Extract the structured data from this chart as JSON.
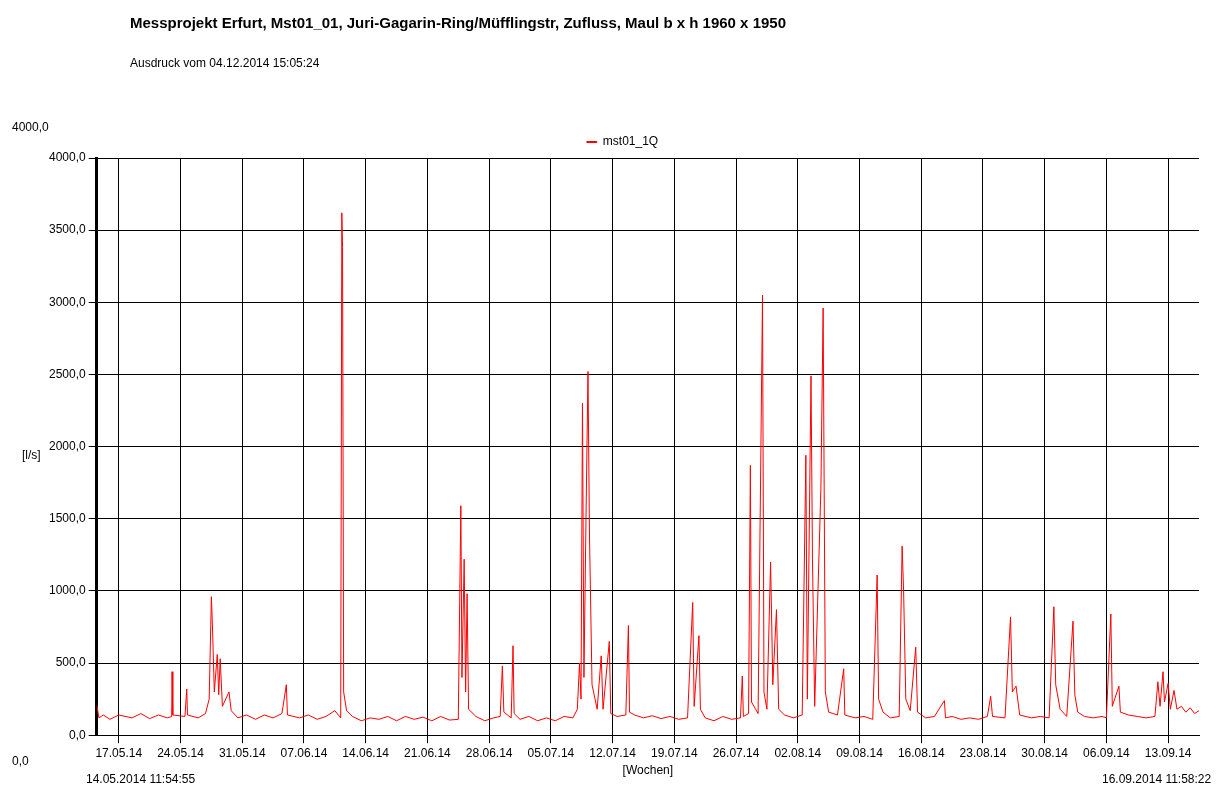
{
  "chart_data": {
    "type": "line",
    "title": "Messprojekt Erfurt, Mst01_01, Juri-Gagarin-Ring/Müfflingstr, Zufluss, Maul b x h 1960 x 1950",
    "subtitle": "Ausdruck vom 04.12.2014 15:05:24",
    "xlabel": "[Wochen]",
    "ylabel": "[l/s]",
    "annotations": [
      "4000,0",
      "0,0",
      "14.05.2014 11:54:55",
      "16.09.2014 11:58:22"
    ],
    "legend": "top",
    "grid": true,
    "marker": "none",
    "line_style": "solid",
    "xlim": [
      "2014-05-14T11:54",
      "2014-09-16T11:58"
    ],
    "xticks": [
      {
        "value": "2014-05-17",
        "label": "17.05.14"
      },
      {
        "value": "2014-05-24",
        "label": "24.05.14"
      },
      {
        "value": "2014-05-31",
        "label": "31.05.14"
      },
      {
        "value": "2014-06-07",
        "label": "07.06.14"
      },
      {
        "value": "2014-06-14",
        "label": "14.06.14"
      },
      {
        "value": "2014-06-21",
        "label": "21.06.14"
      },
      {
        "value": "2014-06-28",
        "label": "28.06.14"
      },
      {
        "value": "2014-07-05",
        "label": "05.07.14"
      },
      {
        "value": "2014-07-12",
        "label": "12.07.14"
      },
      {
        "value": "2014-07-19",
        "label": "19.07.14"
      },
      {
        "value": "2014-07-26",
        "label": "26.07.14"
      },
      {
        "value": "2014-08-02",
        "label": "02.08.14"
      },
      {
        "value": "2014-08-09",
        "label": "09.08.14"
      },
      {
        "value": "2014-08-16",
        "label": "16.08.14"
      },
      {
        "value": "2014-08-23",
        "label": "23.08.14"
      },
      {
        "value": "2014-08-30",
        "label": "30.08.14"
      },
      {
        "value": "2014-09-06",
        "label": "06.09.14"
      },
      {
        "value": "2014-09-13",
        "label": "13.09.14"
      }
    ],
    "ylim": [
      0,
      4000
    ],
    "yticks": [
      {
        "value": 0,
        "label": "0,0"
      },
      {
        "value": 500,
        "label": "500,0"
      },
      {
        "value": 1000,
        "label": "1000,0"
      },
      {
        "value": 1500,
        "label": "1500,0"
      },
      {
        "value": 2000,
        "label": "2000,0"
      },
      {
        "value": 2500,
        "label": "2500,0"
      },
      {
        "value": 3000,
        "label": "3000,0"
      },
      {
        "value": 3500,
        "label": "3500,0"
      },
      {
        "value": 4000,
        "label": "4000,0"
      }
    ],
    "series": [
      {
        "name": "mst01_1Q",
        "color": "#ff0000",
        "x": [
          "2014-05-14T12:00",
          "2014-05-14T18:00",
          "2014-05-15T06:00",
          "2014-05-16T00:00",
          "2014-05-17T00:00",
          "2014-05-18T12:00",
          "2014-05-19T12:00",
          "2014-05-20T12:00",
          "2014-05-21T12:00",
          "2014-05-22T12:00",
          "2014-05-23T00:00",
          "2014-05-23T01:00",
          "2014-05-23T03:00",
          "2014-05-24T12:00",
          "2014-05-24T17:00",
          "2014-05-24T19:00",
          "2014-05-26T00:00",
          "2014-05-26T20:00",
          "2014-05-27T06:00",
          "2014-05-27T12:00",
          "2014-05-27T15:00",
          "2014-05-27T20:00",
          "2014-05-28T04:00",
          "2014-05-28T08:00",
          "2014-05-28T12:00",
          "2014-05-28T18:00",
          "2014-05-29T12:00",
          "2014-05-29T18:00",
          "2014-05-30T12:00",
          "2014-05-31T12:00",
          "2014-06-01T12:00",
          "2014-06-02T12:00",
          "2014-06-03T12:00",
          "2014-06-04T12:00",
          "2014-06-05T00:00",
          "2014-06-05T03:00",
          "2014-06-06T12:00",
          "2014-06-07T12:00",
          "2014-06-08T12:00",
          "2014-06-09T12:00",
          "2014-06-10T12:00",
          "2014-06-11T04:00",
          "2014-06-11T07:00",
          "2014-06-11T09:00",
          "2014-06-11T12:00",
          "2014-06-11T20:00",
          "2014-06-12T12:00",
          "2014-06-13T12:00",
          "2014-06-14T12:00",
          "2014-06-15T12:00",
          "2014-06-16T12:00",
          "2014-06-17T12:00",
          "2014-06-18T12:00",
          "2014-06-19T12:00",
          "2014-06-20T12:00",
          "2014-06-21T12:00",
          "2014-06-22T12:00",
          "2014-06-23T12:00",
          "2014-06-24T12:00",
          "2014-06-24T19:00",
          "2014-06-24T22:00",
          "2014-06-25T04:00",
          "2014-06-25T08:00",
          "2014-06-25T12:00",
          "2014-06-25T16:00",
          "2014-06-26T12:00",
          "2014-06-27T12:00",
          "2014-06-28T12:00",
          "2014-06-29T06:00",
          "2014-06-29T12:00",
          "2014-06-29T16:00",
          "2014-06-30T12:00",
          "2014-06-30T17:00",
          "2014-06-30T20:00",
          "2014-07-01T12:00",
          "2014-07-02T12:00",
          "2014-07-03T12:00",
          "2014-07-04T12:00",
          "2014-07-05T12:00",
          "2014-07-06T12:00",
          "2014-07-07T12:00",
          "2014-07-08T00:00",
          "2014-07-08T06:00",
          "2014-07-08T10:00",
          "2014-07-08T14:00",
          "2014-07-08T18:00",
          "2014-07-09T00:00",
          "2014-07-09T05:00",
          "2014-07-09T09:00",
          "2014-07-09T16:00",
          "2014-07-10T06:00",
          "2014-07-10T17:00",
          "2014-07-10T22:00",
          "2014-07-11T15:00",
          "2014-07-11T19:00",
          "2014-07-12T12:00",
          "2014-07-13T12:00",
          "2014-07-13T19:00",
          "2014-07-13T22:00",
          "2014-07-14T12:00",
          "2014-07-15T12:00",
          "2014-07-16T12:00",
          "2014-07-17T12:00",
          "2014-07-18T12:00",
          "2014-07-19T12:00",
          "2014-07-20T12:00",
          "2014-07-21T02:00",
          "2014-07-21T06:00",
          "2014-07-21T19:00",
          "2014-07-21T23:00",
          "2014-07-22T12:00",
          "2014-07-23T12:00",
          "2014-07-24T12:00",
          "2014-07-25T12:00",
          "2014-07-26T12:00",
          "2014-07-26T17:00",
          "2014-07-26T20:00",
          "2014-07-27T10:00",
          "2014-07-27T15:00",
          "2014-07-27T18:00",
          "2014-07-28T12:00",
          "2014-07-29T00:00",
          "2014-07-29T04:00",
          "2014-07-29T12:00",
          "2014-07-29T22:00",
          "2014-07-30T04:00",
          "2014-07-30T14:00",
          "2014-07-30T20:00",
          "2014-07-31T12:00",
          "2014-08-01T12:00",
          "2014-08-02T12:00",
          "2014-08-02T22:00",
          "2014-08-03T02:00",
          "2014-08-03T12:00",
          "2014-08-03T16:00",
          "2014-08-03T22:00",
          "2014-08-04T15:00",
          "2014-08-04T21:00",
          "2014-08-05T03:00",
          "2014-08-05T12:00",
          "2014-08-06T12:00",
          "2014-08-07T05:00",
          "2014-08-07T08:00",
          "2014-08-08T12:00",
          "2014-08-09T12:00",
          "2014-08-10T12:00",
          "2014-08-11T00:00",
          "2014-08-11T04:00",
          "2014-08-11T16:00",
          "2014-08-12T12:00",
          "2014-08-13T12:00",
          "2014-08-13T20:00",
          "2014-08-14T00:00",
          "2014-08-14T06:00",
          "2014-08-14T18:00",
          "2014-08-15T09:00",
          "2014-08-15T14:00",
          "2014-08-16T12:00",
          "2014-08-17T12:00",
          "2014-08-18T15:00",
          "2014-08-18T18:00",
          "2014-08-19T12:00",
          "2014-08-20T12:00",
          "2014-08-21T12:00",
          "2014-08-22T12:00",
          "2014-08-23T12:00",
          "2014-08-23T21:00",
          "2014-08-24T02:00",
          "2014-08-25T12:00",
          "2014-08-26T03:00",
          "2014-08-26T08:00",
          "2014-08-26T18:00",
          "2014-08-27T04:00",
          "2014-08-28T12:00",
          "2014-08-29T12:00",
          "2014-08-30T12:00",
          "2014-08-31T01:00",
          "2014-08-31T06:00",
          "2014-08-31T18:00",
          "2014-09-01T12:00",
          "2014-09-02T05:00",
          "2014-09-02T10:00",
          "2014-09-02T18:00",
          "2014-09-03T12:00",
          "2014-09-04T12:00",
          "2014-09-05T12:00",
          "2014-09-06T00:00",
          "2014-09-06T12:00",
          "2014-09-06T16:00",
          "2014-09-07T10:00",
          "2014-09-07T14:00",
          "2014-09-08T12:00",
          "2014-09-09T12:00",
          "2014-09-10T12:00",
          "2014-09-11T12:00",
          "2014-09-11T20:00",
          "2014-09-12T02:00",
          "2014-09-12T10:00",
          "2014-09-12T14:00",
          "2014-09-13T00:00",
          "2014-09-13T06:00",
          "2014-09-13T16:00",
          "2014-09-14T00:00",
          "2014-09-14T12:00",
          "2014-09-15T00:00",
          "2014-09-15T12:00",
          "2014-09-16T00:00",
          "2014-09-16T11:58"
        ],
        "values": [
          210,
          120,
          140,
          110,
          140,
          120,
          150,
          115,
          140,
          120,
          130,
          440,
          140,
          130,
          320,
          140,
          120,
          150,
          250,
          960,
          750,
          300,
          560,
          280,
          530,
          200,
          300,
          170,
          120,
          140,
          110,
          140,
          120,
          150,
          350,
          140,
          120,
          140,
          110,
          130,
          170,
          120,
          3620,
          3380,
          300,
          170,
          130,
          100,
          120,
          110,
          130,
          100,
          130,
          110,
          125,
          100,
          130,
          105,
          110,
          1590,
          400,
          1220,
          300,
          980,
          180,
          130,
          100,
          120,
          130,
          480,
          160,
          120,
          620,
          150,
          110,
          130,
          100,
          120,
          100,
          130,
          120,
          180,
          500,
          250,
          2300,
          400,
          1580,
          2520,
          1400,
          350,
          180,
          550,
          180,
          650,
          150,
          130,
          140,
          760,
          160,
          140,
          120,
          135,
          115,
          130,
          110,
          120,
          920,
          200,
          690,
          180,
          120,
          100,
          130,
          110,
          120,
          410,
          130,
          150,
          1870,
          230,
          150,
          3050,
          300,
          180,
          1200,
          350,
          870,
          180,
          140,
          120,
          140,
          1940,
          250,
          2490,
          1220,
          200,
          1720,
          2960,
          300,
          160,
          140,
          460,
          140,
          120,
          130,
          110,
          1110,
          250,
          160,
          120,
          130,
          1310,
          1000,
          250,
          170,
          610,
          160,
          120,
          130,
          240,
          120,
          130,
          110,
          120,
          110,
          130,
          270,
          130,
          120,
          820,
          300,
          340,
          140,
          120,
          130,
          120,
          890,
          350,
          180,
          130,
          790,
          280,
          160,
          130,
          120,
          130,
          120,
          840,
          200,
          340,
          160,
          140,
          130,
          120,
          130,
          370,
          200,
          440,
          230,
          360,
          180,
          310,
          180,
          200,
          160,
          190,
          150,
          170
        ]
      }
    ]
  }
}
